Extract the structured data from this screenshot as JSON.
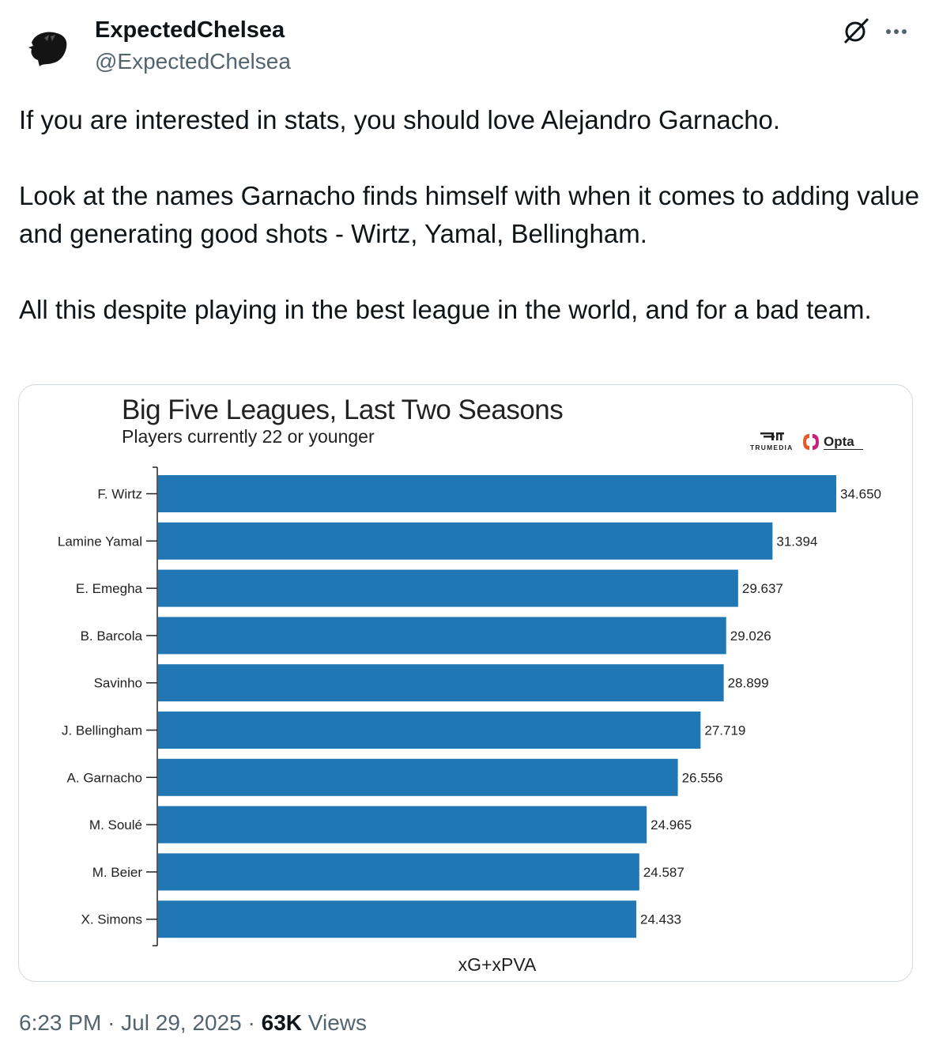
{
  "author": {
    "display_name": "ExpectedChelsea",
    "handle": "@ExpectedChelsea"
  },
  "tweet": {
    "paragraphs": [
      "If you are interested in stats, you should love Alejandro Garnacho.",
      "Look at the names Garnacho finds himself with when it comes to adding value and generating good shots - Wirtz, Yamal, Bellingham.",
      "All this despite playing in the best league in the world, and for a bad team."
    ]
  },
  "chart_data": {
    "type": "bar",
    "orientation": "horizontal",
    "title": "Big Five Leagues, Last Two Seasons",
    "subtitle": "Players currently 22 or younger",
    "xlabel": "xG+xPVA",
    "categories": [
      "F. Wirtz",
      "Lamine Yamal",
      "E. Emegha",
      "B. Barcola",
      "Savinho",
      "J. Bellingham",
      "A. Garnacho",
      "M. Soulé",
      "M. Beier",
      "X. Simons"
    ],
    "values": [
      34.65,
      31.394,
      29.637,
      29.026,
      28.899,
      27.719,
      26.556,
      24.965,
      24.587,
      24.433
    ],
    "value_labels": [
      "34.650",
      "31.394",
      "29.637",
      "29.026",
      "28.899",
      "27.719",
      "26.556",
      "24.965",
      "24.587",
      "24.433"
    ],
    "xlim": [
      0,
      34.65
    ],
    "bar_color": "#2077b4",
    "logos": [
      "TRUMEDIA",
      "Opta"
    ]
  },
  "footer": {
    "time": "6:23 PM",
    "separator": "·",
    "date": "Jul 29, 2025",
    "views_count": "63K",
    "views_label": "Views"
  },
  "icons": {
    "avatar": "lion-head-icon",
    "grok": "grok-icon",
    "more": "more-icon"
  }
}
